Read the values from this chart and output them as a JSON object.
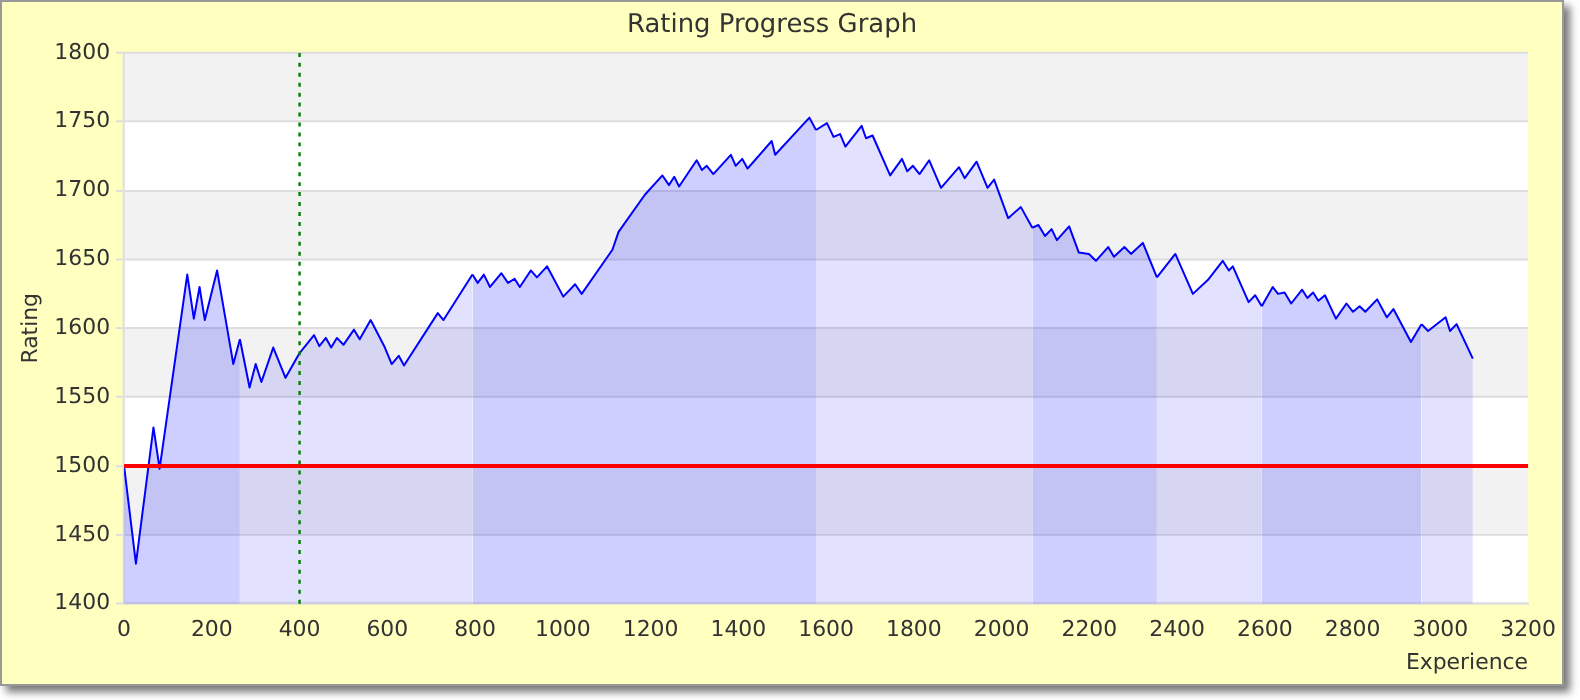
{
  "chart_data": {
    "type": "area",
    "title": "Rating Progress Graph",
    "xlabel": "Experience",
    "ylabel": "Rating",
    "series": [
      {
        "color": "#0000ff",
        "x": [
          0,
          27,
          67,
          81,
          144,
          159,
          172,
          184,
          212,
          249,
          264
        ],
        "values": [
          1500,
          1429,
          1528,
          1498,
          1639,
          1607,
          1630,
          1606,
          1642,
          1574,
          1592
        ]
      },
      {
        "color": "#0000ff",
        "x": [
          264,
          286,
          300,
          313,
          340,
          368,
          400,
          433,
          445,
          460,
          472,
          485,
          500,
          524,
          537,
          562,
          593,
          610,
          626,
          638,
          715,
          728,
          794
        ],
        "values": [
          1592,
          1557,
          1574,
          1561,
          1586,
          1564,
          1582,
          1595,
          1587,
          1593,
          1586,
          1593,
          1588,
          1599,
          1592,
          1606,
          1587,
          1574,
          1580,
          1573,
          1611,
          1606,
          1639
        ]
      },
      {
        "color": "#0000ff",
        "x": [
          794,
          806,
          820,
          834,
          860,
          875,
          890,
          902,
          927,
          941,
          964,
          1001,
          1028,
          1043,
          1113,
          1127,
          1187,
          1227,
          1242,
          1254,
          1265,
          1305,
          1317,
          1328,
          1343,
          1383,
          1394,
          1409,
          1421,
          1476,
          1484,
          1562,
          1577
        ],
        "values": [
          1639,
          1633,
          1639,
          1630,
          1640,
          1633,
          1636,
          1630,
          1642,
          1637,
          1645,
          1623,
          1632,
          1625,
          1657,
          1670,
          1697,
          1711,
          1704,
          1710,
          1703,
          1722,
          1715,
          1718,
          1712,
          1726,
          1718,
          1723,
          1716,
          1736,
          1726,
          1753,
          1744
        ]
      },
      {
        "color": "#0000ff",
        "x": [
          1577,
          1602,
          1617,
          1632,
          1644,
          1681,
          1691,
          1706,
          1746,
          1773,
          1785,
          1798,
          1813,
          1835,
          1862,
          1903,
          1916,
          1943,
          1968,
          1983,
          2015,
          2044,
          2070
        ],
        "values": [
          1744,
          1749,
          1739,
          1741,
          1732,
          1747,
          1738,
          1740,
          1711,
          1723,
          1714,
          1718,
          1712,
          1722,
          1702,
          1717,
          1709,
          1721,
          1702,
          1708,
          1680,
          1688,
          1673
        ]
      },
      {
        "color": "#0000ff",
        "x": [
          2070,
          2084,
          2099,
          2114,
          2126,
          2154,
          2176,
          2199,
          2215,
          2243,
          2256,
          2280,
          2295,
          2322,
          2354
        ],
        "values": [
          1673,
          1675,
          1667,
          1672,
          1664,
          1674,
          1655,
          1654,
          1649,
          1659,
          1652,
          1659,
          1654,
          1662,
          1637
        ]
      },
      {
        "color": "#0000ff",
        "x": [
          2354,
          2396,
          2436,
          2470,
          2504,
          2518,
          2527,
          2563,
          2578,
          2593
        ],
        "values": [
          1637,
          1654,
          1625,
          1635,
          1649,
          1642,
          1645,
          1619,
          1624,
          1616
        ]
      },
      {
        "color": "#0000ff",
        "x": [
          2593,
          2618,
          2630,
          2645,
          2660,
          2685,
          2697,
          2710,
          2722,
          2737,
          2762,
          2786,
          2801,
          2816,
          2829,
          2856,
          2878,
          2893,
          2933,
          2957
        ],
        "values": [
          1616,
          1630,
          1625,
          1626,
          1618,
          1628,
          1622,
          1626,
          1620,
          1624,
          1607,
          1618,
          1612,
          1616,
          1612,
          1621,
          1608,
          1614,
          1590,
          1603
        ]
      },
      {
        "color": "#0000ff",
        "x": [
          2957,
          2972,
          3012,
          3022,
          3037,
          3074
        ],
        "values": [
          1603,
          1598,
          1608,
          1598,
          1603,
          1578
        ]
      }
    ],
    "xlim": [
      0,
      3200
    ],
    "xticks": [
      0,
      200,
      400,
      600,
      800,
      1000,
      1200,
      1400,
      1600,
      1800,
      2000,
      2200,
      2400,
      2600,
      2800,
      3000,
      3200
    ],
    "ylim": [
      1400,
      1800
    ],
    "yticks": [
      1400,
      1450,
      1500,
      1550,
      1600,
      1650,
      1700,
      1750,
      1800
    ],
    "grid": "y",
    "legend": false,
    "marker": "none",
    "line_style": "solid",
    "ref_lines": [
      {
        "axis": "y",
        "value": 1500,
        "color": "#ff0000",
        "line_style": "solid"
      },
      {
        "axis": "x",
        "value": 400,
        "color": "#008000",
        "line_style": "dotted"
      }
    ]
  }
}
